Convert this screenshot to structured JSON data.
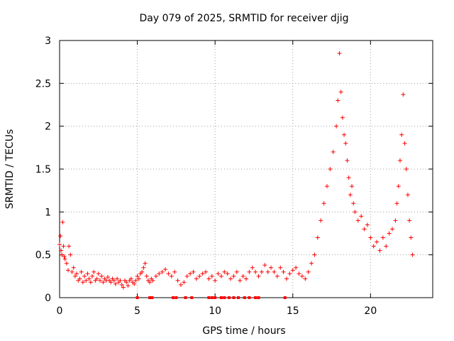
{
  "chart_data": {
    "type": "scatter",
    "title": "Day 079 of 2025, SRMTID for receiver djig",
    "xlabel": "GPS time / hours",
    "ylabel": "SRMTID / TECUs",
    "xlim": [
      0,
      24
    ],
    "ylim": [
      0,
      3
    ],
    "x_ticks": [
      0,
      5,
      10,
      15,
      20
    ],
    "x_tick_labels": [
      "0",
      "5",
      "10",
      "15",
      "20"
    ],
    "y_ticks": [
      0,
      0.5,
      1,
      1.5,
      2,
      2.5,
      3
    ],
    "y_tick_labels": [
      "0",
      "0.5",
      "1",
      "1.5",
      "2",
      "2.5",
      "3"
    ],
    "grid": true,
    "marker": "+",
    "color": "#ff0000",
    "baseline_color": "#ff0000",
    "series": [
      {
        "name": "SRMTID",
        "x": [
          0.0,
          0.05,
          0.1,
          0.15,
          0.2,
          0.25,
          0.3,
          0.35,
          0.45,
          0.55,
          0.6,
          0.7,
          0.8,
          0.9,
          1.0,
          1.1,
          1.2,
          1.3,
          1.4,
          1.5,
          1.6,
          1.7,
          1.8,
          1.9,
          2.0,
          2.1,
          2.2,
          2.3,
          2.4,
          2.5,
          2.6,
          2.7,
          2.8,
          2.9,
          3.0,
          3.1,
          3.2,
          3.3,
          3.4,
          3.5,
          3.6,
          3.7,
          3.8,
          3.9,
          4.0,
          4.1,
          4.2,
          4.3,
          4.4,
          4.5,
          4.6,
          4.7,
          4.8,
          4.9,
          5.0,
          5.1,
          5.2,
          5.3,
          5.4,
          5.5,
          5.6,
          5.7,
          5.8,
          5.9,
          6.0,
          6.2,
          6.4,
          6.6,
          6.8,
          7.0,
          7.2,
          7.4,
          7.6,
          7.8,
          8.0,
          8.2,
          8.4,
          8.6,
          8.8,
          9.0,
          9.2,
          9.4,
          9.6,
          9.8,
          10.0,
          10.2,
          10.4,
          10.6,
          10.8,
          11.0,
          11.2,
          11.4,
          11.6,
          11.8,
          12.0,
          12.2,
          12.4,
          12.6,
          12.8,
          13.0,
          13.2,
          13.4,
          13.6,
          13.8,
          14.0,
          14.2,
          14.4,
          14.6,
          14.8,
          15.0,
          15.2,
          15.4,
          15.6,
          15.8,
          16.0,
          16.2,
          16.4,
          16.6,
          16.8,
          17.0,
          17.2,
          17.4,
          17.6,
          17.8,
          17.9,
          18.0,
          18.1,
          18.2,
          18.3,
          18.4,
          18.5,
          18.6,
          18.7,
          18.8,
          18.9,
          19.0,
          19.2,
          19.4,
          19.6,
          19.8,
          20.0,
          20.2,
          20.4,
          20.6,
          20.8,
          21.0,
          21.2,
          21.4,
          21.6,
          21.7,
          21.8,
          21.9,
          22.0,
          22.1,
          22.2,
          22.3,
          22.4,
          22.5,
          22.6,
          22.7
        ],
        "y": [
          0.62,
          0.72,
          0.55,
          0.5,
          0.88,
          0.6,
          0.48,
          0.45,
          0.4,
          0.32,
          0.6,
          0.5,
          0.3,
          0.35,
          0.25,
          0.28,
          0.2,
          0.22,
          0.3,
          0.18,
          0.25,
          0.2,
          0.28,
          0.22,
          0.18,
          0.25,
          0.3,
          0.2,
          0.22,
          0.28,
          0.2,
          0.25,
          0.18,
          0.22,
          0.2,
          0.24,
          0.2,
          0.18,
          0.22,
          0.2,
          0.16,
          0.22,
          0.18,
          0.2,
          0.15,
          0.12,
          0.2,
          0.18,
          0.14,
          0.2,
          0.22,
          0.18,
          0.16,
          0.2,
          0.25,
          0.22,
          0.28,
          0.3,
          0.35,
          0.4,
          0.25,
          0.2,
          0.18,
          0.22,
          0.2,
          0.25,
          0.28,
          0.3,
          0.33,
          0.28,
          0.25,
          0.3,
          0.2,
          0.15,
          0.18,
          0.25,
          0.28,
          0.3,
          0.22,
          0.25,
          0.28,
          0.3,
          0.22,
          0.25,
          0.2,
          0.28,
          0.25,
          0.3,
          0.28,
          0.22,
          0.25,
          0.3,
          0.2,
          0.25,
          0.22,
          0.3,
          0.35,
          0.3,
          0.25,
          0.3,
          0.38,
          0.3,
          0.35,
          0.3,
          0.25,
          0.35,
          0.3,
          0.22,
          0.28,
          0.32,
          0.35,
          0.28,
          0.25,
          0.22,
          0.3,
          0.4,
          0.5,
          0.7,
          0.9,
          1.1,
          1.3,
          1.5,
          1.7,
          2.0,
          2.3,
          2.85,
          2.4,
          2.1,
          1.9,
          1.8,
          1.6,
          1.4,
          1.2,
          1.3,
          1.1,
          1.0,
          0.9,
          0.95,
          0.8,
          0.85,
          0.7,
          0.6,
          0.65,
          0.55,
          0.7,
          0.6,
          0.75,
          0.8,
          0.9,
          1.1,
          1.3,
          1.6,
          1.9,
          2.37,
          1.8,
          1.5,
          1.2,
          0.9,
          0.7,
          0.5
        ]
      }
    ],
    "baseline_marks_x": [
      5.0,
      5.8,
      5.95,
      7.3,
      7.5,
      8.1,
      8.5,
      9.6,
      9.8,
      10.0,
      10.4,
      10.6,
      10.9,
      11.2,
      11.5,
      11.9,
      12.2,
      12.6,
      12.8,
      14.5
    ]
  }
}
